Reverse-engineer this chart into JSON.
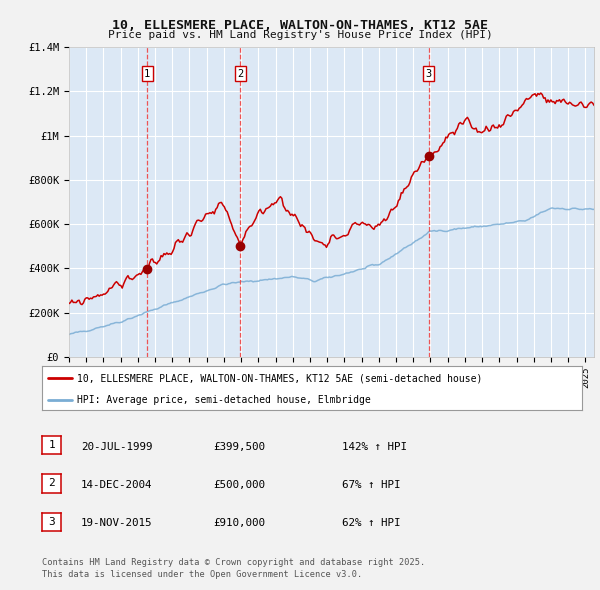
{
  "title": "10, ELLESMERE PLACE, WALTON-ON-THAMES, KT12 5AE",
  "subtitle": "Price paid vs. HM Land Registry's House Price Index (HPI)",
  "plot_bg_color": "#dce8f5",
  "fig_bg_color": "#f0f0f0",
  "ylim": [
    0,
    1400000
  ],
  "yticks": [
    0,
    200000,
    400000,
    600000,
    800000,
    1000000,
    1200000,
    1400000
  ],
  "ytick_labels": [
    "£0",
    "£200K",
    "£400K",
    "£600K",
    "£800K",
    "£1M",
    "£1.2M",
    "£1.4M"
  ],
  "sale_dates": [
    1999.55,
    2004.95,
    2015.89
  ],
  "sale_prices": [
    399500,
    500000,
    910000
  ],
  "sale_labels": [
    "1",
    "2",
    "3"
  ],
  "legend_red": "10, ELLESMERE PLACE, WALTON-ON-THAMES, KT12 5AE (semi-detached house)",
  "legend_blue": "HPI: Average price, semi-detached house, Elmbridge",
  "table_data": [
    [
      "1",
      "20-JUL-1999",
      "£399,500",
      "142% ↑ HPI"
    ],
    [
      "2",
      "14-DEC-2004",
      "£500,000",
      "67% ↑ HPI"
    ],
    [
      "3",
      "19-NOV-2015",
      "£910,000",
      "62% ↑ HPI"
    ]
  ],
  "footer": "Contains HM Land Registry data © Crown copyright and database right 2025.\nThis data is licensed under the Open Government Licence v3.0.",
  "red_color": "#cc0000",
  "blue_color": "#7aadd4",
  "dashed_color": "#ee4444",
  "dot_color": "#990000"
}
